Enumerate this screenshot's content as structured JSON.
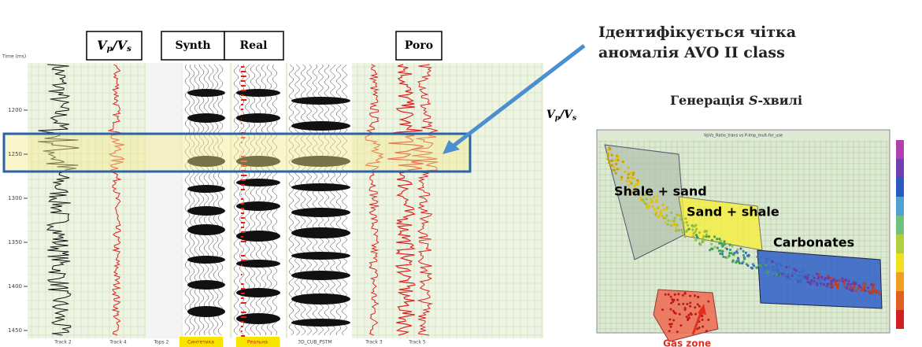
{
  "annotation": [
    "Ідентифікується чітка",
    "аномалія AVO II class"
  ],
  "crossplot_title": [
    "Генерація ",
    "S",
    "-хвилі"
  ],
  "vp_vs": [
    "V",
    "p",
    "/V",
    "s"
  ],
  "track_headers": [
    "Synth",
    "Real",
    "Poro"
  ],
  "time_axis": {
    "label": "Time (ms)",
    "ticks": [
      1200,
      1250,
      1300,
      1350,
      1400,
      1450
    ]
  },
  "track_footers": [
    "Track 2",
    "Track 4",
    "Tops 2",
    "Синтетика",
    "Реальна",
    "3D_CUB_PSTM",
    "Track 3",
    "Track 5"
  ],
  "crossplot_labels": [
    "Shale + sand",
    "Sand + shale",
    "Carbonates",
    "Gas zone"
  ],
  "plot_title": "VpVs_Ratio_trans vs P-Imp_mult-for_use"
}
